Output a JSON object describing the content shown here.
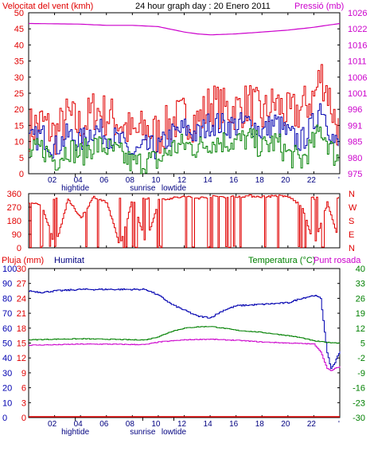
{
  "colors": {
    "red": "#e00000",
    "magenta": "#cc00cc",
    "blue": "#0000b0",
    "green": "#008000",
    "navy": "#000080",
    "black": "#000000"
  },
  "chart_data": [
    {
      "type": "line",
      "title": "24 hour graph day : 20 Enero 2011",
      "ylabel_left": "Velocitat del vent (kmh)",
      "ylabel_right": "Pressió (mb)",
      "x_ticks": [
        "02",
        "04",
        "06",
        "08",
        "10",
        "12",
        "14",
        "16",
        "18",
        "20",
        "22",
        "'"
      ],
      "x_markers": [
        "hightide",
        "sunrise",
        "lowtide"
      ],
      "ylim_left": [
        0,
        50
      ],
      "y_ticks_left": [
        "0",
        "5",
        "10",
        "15",
        "20",
        "25",
        "30",
        "35",
        "40",
        "45",
        "50"
      ],
      "ylim_right": [
        975,
        1026
      ],
      "y_ticks_right": [
        "975",
        "980",
        "985",
        "991",
        "996",
        "1001",
        "1006",
        "1011",
        "1016",
        "1022",
        "1026"
      ],
      "series": [
        {
          "name": "Velocitat del vent",
          "axis": "left",
          "color": "red",
          "x": [
            0,
            1,
            2,
            3,
            4,
            5,
            6,
            7,
            8,
            9,
            10,
            11,
            12,
            13,
            14,
            15,
            16,
            17,
            18,
            19,
            20,
            21,
            22,
            22.5,
            23,
            23.5,
            24
          ],
          "values": [
            14,
            16,
            12,
            18,
            14,
            20,
            18,
            16,
            12,
            14,
            12,
            16,
            18,
            16,
            22,
            20,
            20,
            22,
            18,
            22,
            18,
            20,
            24,
            31,
            26,
            18,
            12
          ]
        },
        {
          "name": "",
          "axis": "left",
          "color": "blue",
          "x": [
            0,
            1,
            2,
            3,
            4,
            5,
            6,
            7,
            8,
            9,
            10,
            11,
            12,
            13,
            14,
            15,
            16,
            17,
            18,
            19,
            20,
            21,
            22,
            22.5,
            23,
            23.5,
            24
          ],
          "values": [
            10,
            12,
            8,
            12,
            10,
            14,
            12,
            10,
            6,
            8,
            8,
            12,
            14,
            12,
            16,
            15,
            15,
            16,
            13,
            16,
            12,
            10,
            16,
            22,
            16,
            10,
            8
          ]
        },
        {
          "name": "",
          "axis": "left",
          "color": "green",
          "x": [
            0,
            1,
            2,
            3,
            4,
            5,
            6,
            7,
            8,
            9,
            10,
            11,
            12,
            13,
            14,
            15,
            16,
            17,
            18,
            19,
            20,
            21,
            22,
            22.5,
            23,
            23.5,
            24
          ],
          "values": [
            6,
            8,
            4,
            8,
            6,
            9,
            8,
            6,
            3,
            4,
            4,
            8,
            9,
            8,
            10,
            10,
            10,
            11,
            8,
            10,
            6,
            4,
            10,
            14,
            10,
            6,
            4
          ]
        },
        {
          "name": "Pressió",
          "axis": "right",
          "color": "magenta",
          "x": [
            0,
            2,
            4,
            6,
            8,
            10,
            12,
            13,
            14,
            16,
            18,
            20,
            22,
            24
          ],
          "values": [
            1022.6,
            1022.5,
            1022.4,
            1022.0,
            1022.0,
            1021.6,
            1019.9,
            1019.3,
            1019.0,
            1019.3,
            1019.9,
            1020.5,
            1021.4,
            1022.6
          ]
        }
      ]
    },
    {
      "type": "line",
      "ylabel_right": [
        "N",
        "W",
        "S",
        "E",
        "N"
      ],
      "ylim": [
        0,
        360
      ],
      "y_ticks": [
        "0",
        "90",
        "180",
        "270",
        "360"
      ],
      "series": [
        {
          "name": "",
          "color": "red",
          "x": [
            0,
            1,
            2,
            3,
            4,
            5,
            6,
            7,
            8,
            9,
            10,
            11,
            12,
            13,
            14,
            15,
            16,
            17,
            18,
            19,
            20,
            21,
            22,
            23,
            24
          ],
          "values": [
            300,
            280,
            10,
            320,
            200,
            340,
            300,
            10,
            330,
            20,
            320,
            330,
            340,
            330,
            340,
            340,
            340,
            345,
            340,
            345,
            340,
            280,
            20,
            300,
            10
          ]
        }
      ]
    },
    {
      "type": "line",
      "ylabel_left": "Pluja (mm)",
      "ylabel_left_2": "Humitat",
      "ylabel_right": "Temperatura (°C)",
      "ylabel_right_2": "Punt rosada",
      "x_ticks": [
        "02",
        "04",
        "06",
        "08",
        "10",
        "12",
        "14",
        "16",
        "18",
        "20",
        "22",
        "'"
      ],
      "x_markers": [
        "hightide",
        "sunrise",
        "lowtide"
      ],
      "ylim_rain": [
        0,
        30
      ],
      "y_ticks_rain": [
        "0",
        "3",
        "6",
        "9",
        "12",
        "15",
        "18",
        "21",
        "24",
        "27",
        "30"
      ],
      "ylim_humidity": [
        0,
        100
      ],
      "y_ticks_humidity": [
        "0",
        "10",
        "20",
        "30",
        "40",
        "50",
        "60",
        "70",
        "80",
        "90",
        "100"
      ],
      "ylim_temp": [
        -30,
        40
      ],
      "y_ticks_temp": [
        "-30",
        "-23",
        "-16",
        "-9",
        "-2",
        "5",
        "12",
        "19",
        "26",
        "33",
        "40"
      ],
      "series": [
        {
          "name": "Pluja",
          "axis": "rain",
          "color": "red",
          "x": [
            0,
            24
          ],
          "values": [
            0,
            0
          ]
        },
        {
          "name": "Humitat",
          "axis": "humidity",
          "color": "blue",
          "x": [
            0,
            1,
            2,
            4,
            6,
            8,
            9,
            10,
            11,
            12,
            13,
            14,
            15,
            16,
            18,
            20,
            21,
            22,
            22.5,
            23,
            23.3,
            23.6,
            24
          ],
          "values": [
            85,
            84,
            85,
            86,
            86,
            86,
            86,
            82,
            76,
            72,
            68,
            67,
            72,
            75,
            76,
            77,
            80,
            82,
            80,
            43,
            33,
            37,
            45
          ]
        },
        {
          "name": "Temperatura",
          "axis": "temp",
          "color": "green",
          "x": [
            0,
            2,
            4,
            6,
            8,
            9,
            10,
            11,
            12,
            13,
            14,
            15,
            16,
            18,
            20,
            21,
            22,
            23,
            24
          ],
          "values": [
            6.5,
            6.8,
            7,
            6.8,
            6.5,
            6.5,
            8,
            10.5,
            12,
            12.6,
            12.8,
            12,
            11,
            10,
            8.5,
            7.5,
            6,
            5.3,
            5
          ]
        },
        {
          "name": "Punt rosada",
          "axis": "temp",
          "color": "magenta",
          "x": [
            0,
            2,
            4,
            6,
            8,
            9,
            10,
            11,
            12,
            13,
            14,
            15,
            16,
            18,
            20,
            21,
            22,
            22.5,
            23,
            23.3,
            23.6,
            24
          ],
          "values": [
            4,
            4.2,
            4.5,
            4.5,
            4.3,
            4.3,
            5.5,
            6,
            6.5,
            6.7,
            6.8,
            6.5,
            6.3,
            5.5,
            5,
            4.8,
            4.5,
            1,
            -7,
            -8,
            -7,
            -6
          ]
        }
      ]
    }
  ]
}
